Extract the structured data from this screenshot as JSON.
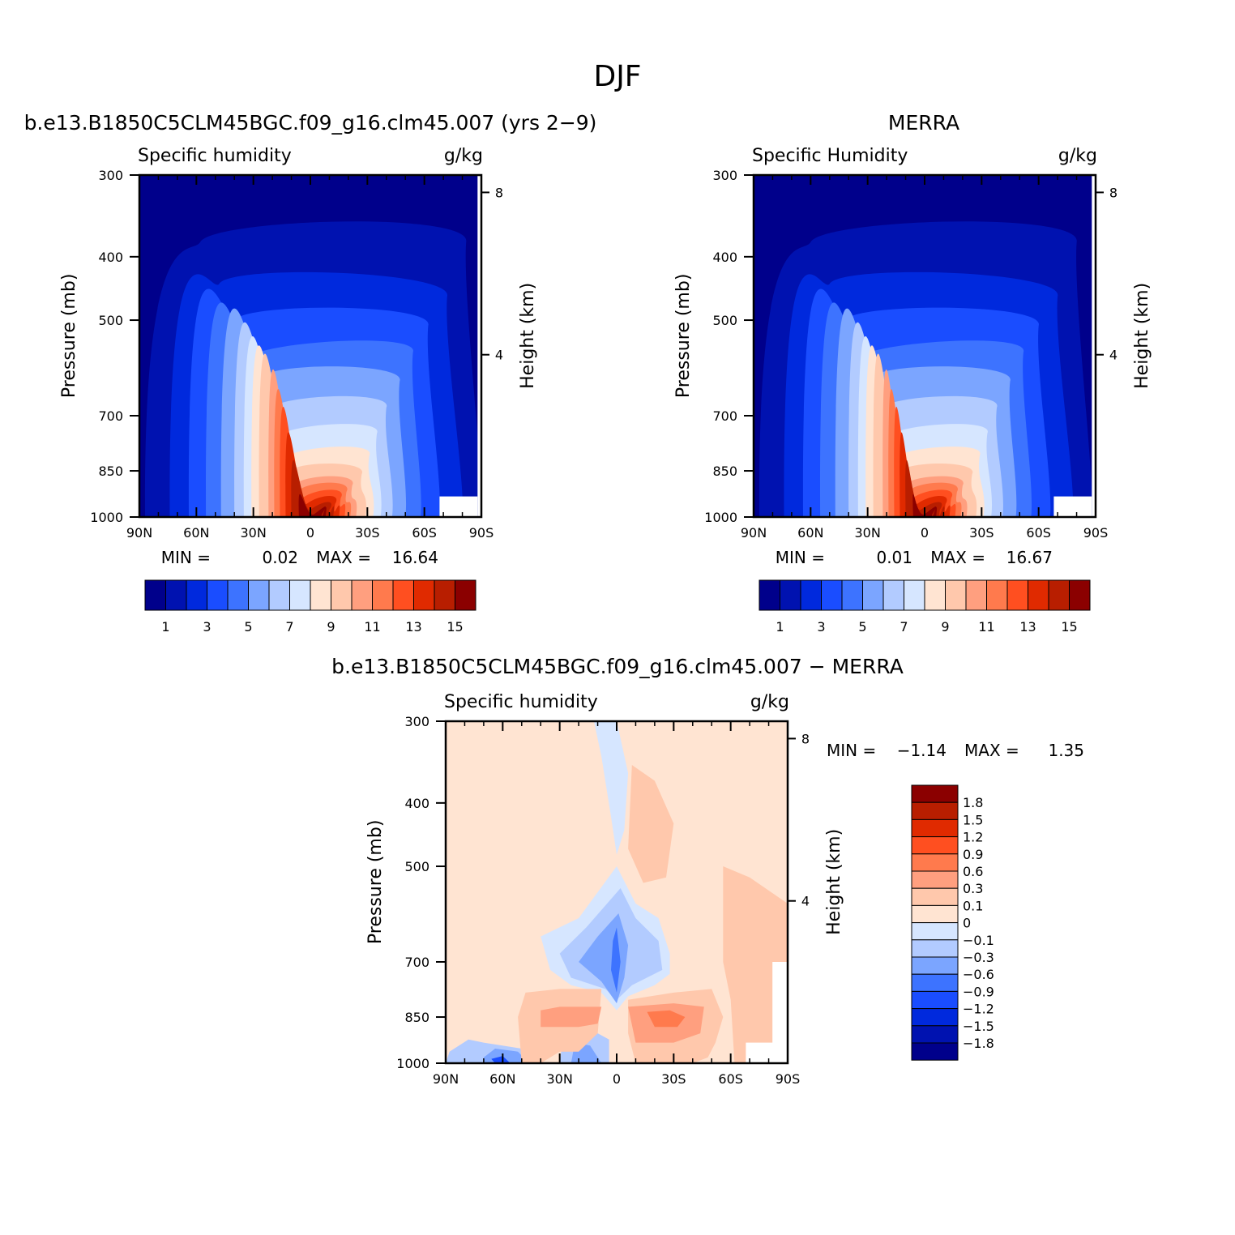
{
  "figure": {
    "main_title": "DJF",
    "panel_titles": {
      "model": "b.e13.B1850C5CLM45BGC.f09_g16.clm45.007 (yrs 2−9)",
      "obs": "MERRA",
      "diff": "b.e13.B1850C5CLM45BGC.f09_g16.clm45.007 − MERRA"
    }
  },
  "chart_data": [
    {
      "id": "model",
      "type": "heatmap",
      "title": "b.e13.B1850C5CLM45BGC.f09_g16.clm45.007 (yrs 2−9)",
      "field_label": "Specific humidity",
      "units": "g/kg",
      "ylabel": "Pressure (mb)",
      "ylabel_right": "Height (km)",
      "x_ticks": [
        "90N",
        "60N",
        "30N",
        "0",
        "30S",
        "60S",
        "90S"
      ],
      "y_ticks": [
        300,
        400,
        500,
        700,
        850,
        1000
      ],
      "y_scale": "log",
      "ylim": [
        1000,
        300
      ],
      "xlim": [
        90,
        -90
      ],
      "height_ticks": [
        8,
        4
      ],
      "stats": {
        "min_label": "MIN =",
        "min": "0.02",
        "max_label": "MAX =",
        "max": "16.64"
      },
      "levels": [
        1,
        2,
        3,
        4,
        5,
        6,
        7,
        8,
        9,
        10,
        11,
        12,
        13,
        14,
        15
      ],
      "colorbar_labels": [
        "1",
        "3",
        "5",
        "7",
        "9",
        "11",
        "13",
        "15"
      ],
      "peak_latitude": -5,
      "peak_value": 16.64,
      "grid": false
    },
    {
      "id": "obs",
      "type": "heatmap",
      "title": "MERRA",
      "field_label": "Specific Humidity",
      "units": "g/kg",
      "ylabel": "Pressure (mb)",
      "ylabel_right": "Height (km)",
      "x_ticks": [
        "90N",
        "60N",
        "30N",
        "0",
        "30S",
        "60S",
        "90S"
      ],
      "y_ticks": [
        300,
        400,
        500,
        700,
        850,
        1000
      ],
      "y_scale": "log",
      "ylim": [
        1000,
        300
      ],
      "xlim": [
        90,
        -90
      ],
      "height_ticks": [
        8,
        4
      ],
      "stats": {
        "min_label": "MIN =",
        "min": "0.01",
        "max_label": "MAX =",
        "max": "16.67"
      },
      "levels": [
        1,
        2,
        3,
        4,
        5,
        6,
        7,
        8,
        9,
        10,
        11,
        12,
        13,
        14,
        15
      ],
      "colorbar_labels": [
        "1",
        "3",
        "5",
        "7",
        "9",
        "11",
        "13",
        "15"
      ],
      "peak_latitude": -3,
      "peak_value": 16.67,
      "grid": false
    },
    {
      "id": "diff",
      "type": "heatmap",
      "title": "b.e13.B1850C5CLM45BGC.f09_g16.clm45.007 − MERRA",
      "field_label": "Specific humidity",
      "units": "g/kg",
      "ylabel": "Pressure (mb)",
      "ylabel_right": "Height (km)",
      "x_ticks": [
        "90N",
        "60N",
        "30N",
        "0",
        "30S",
        "60S",
        "90S"
      ],
      "y_ticks": [
        300,
        400,
        500,
        700,
        850,
        1000
      ],
      "y_scale": "log",
      "ylim": [
        1000,
        300
      ],
      "xlim": [
        90,
        -90
      ],
      "height_ticks": [
        8,
        4
      ],
      "stats": {
        "min_label": "MIN =",
        "min": "−1.14",
        "max_label": "MAX =",
        "max": "1.35"
      },
      "levels": [
        -1.8,
        -1.5,
        -1.2,
        -0.9,
        -0.6,
        -0.3,
        -0.1,
        0,
        0.1,
        0.3,
        0.6,
        0.9,
        1.2,
        1.5,
        1.8
      ],
      "colorbar_labels": [
        "1.8",
        "1.5",
        "1.2",
        "0.9",
        "0.6",
        "0.3",
        "0.1",
        "0",
        "−0.1",
        "−0.3",
        "−0.6",
        "−0.9",
        "−1.2",
        "−1.5",
        "−1.8"
      ],
      "legend_placement": "right",
      "grid": false
    }
  ],
  "palette": [
    "#00008b",
    "#0012b0",
    "#0029dd",
    "#1a4dff",
    "#3d73ff",
    "#7ba5ff",
    "#b2cbff",
    "#d6e6ff",
    "#ffe4d2",
    "#ffc8ac",
    "#ff9f7f",
    "#ff7a4d",
    "#ff4f20",
    "#e02a00",
    "#b81e00",
    "#8b0000"
  ]
}
